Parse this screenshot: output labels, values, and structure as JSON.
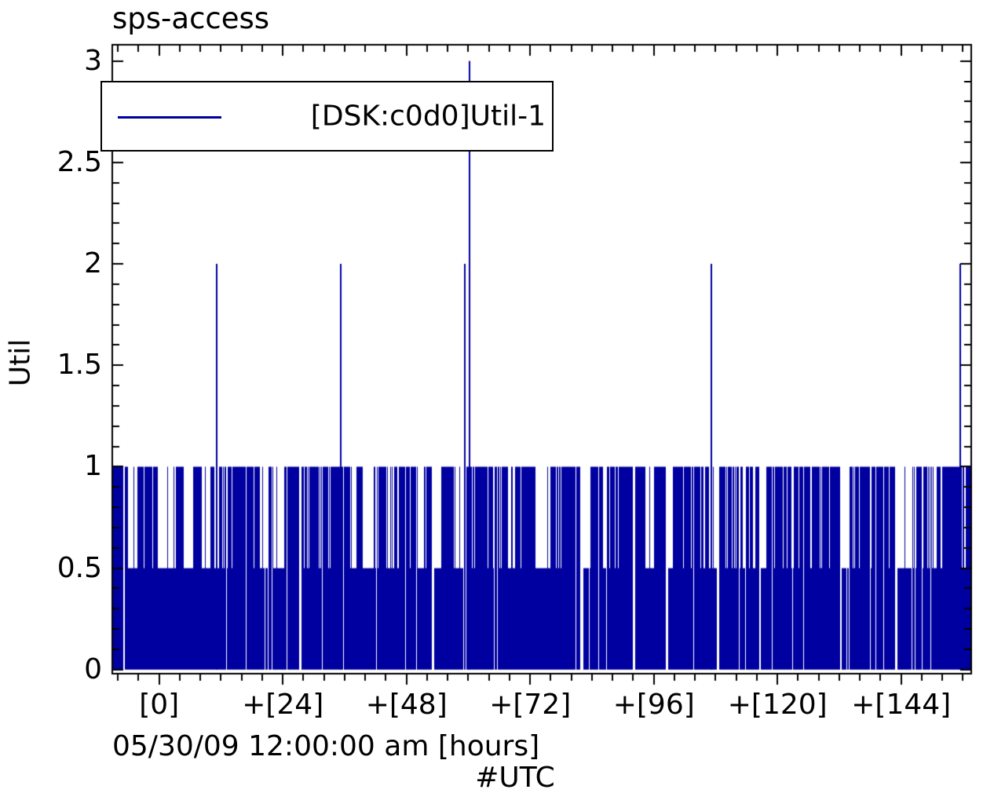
{
  "page": {
    "background": "#ffffff"
  },
  "chart_data": {
    "type": "bar",
    "subtype": "impulses",
    "title": "sps-access",
    "ylabel": "Util",
    "xlabel": "05/30/09 12:00:00 am [hours]",
    "xlabel2": "#UTC",
    "grid": false,
    "series_color": "#0000a0",
    "legend": {
      "position": "top-left",
      "entries": [
        {
          "label": "[DSK:c0d0]Util-1",
          "color": "#0000a0"
        }
      ]
    },
    "x_axis": {
      "unit": "hours since 05/30/09 12:00:00 am UTC",
      "min": -9.1,
      "max": 157.6,
      "major_ticks": [
        0,
        24,
        48,
        72,
        96,
        120,
        144
      ],
      "major_tick_labels": [
        "[0]",
        "+[24]",
        "+[48]",
        "+[72]",
        "+[96]",
        "+[120]",
        "+[144]"
      ],
      "minor_tick_step": 4
    },
    "y_axis": {
      "min": -0.02,
      "max": 3.08,
      "major_ticks": [
        0,
        0.5,
        1,
        1.5,
        2,
        2.5,
        3
      ],
      "major_tick_labels": [
        "0",
        "0.5",
        "1",
        "1.5",
        "2",
        "2.5",
        "3"
      ],
      "minor_tick_step": 0.1
    },
    "spikes": [
      {
        "hour": 11.1,
        "value": 2
      },
      {
        "hour": 35.2,
        "value": 2
      },
      {
        "hour": 59.3,
        "value": 2
      },
      {
        "hour": 60.3,
        "value": 3
      },
      {
        "hour": 107.1,
        "value": 2
      },
      {
        "hour": 155.4,
        "value": 2
      }
    ],
    "baseline_texture": {
      "note": "dense per-pixel-column impulses; values quantized to 1.0 and 0.5, white gaps = 0/no data",
      "values": [
        1,
        0.5,
        0
      ],
      "seed": 1337,
      "regions": [
        {
          "to_hour": 49,
          "p_full": 0.6,
          "p_half": 0.28
        },
        {
          "to_hour": 61,
          "p_full": 0.5,
          "p_half": 0.28
        },
        {
          "to_hour": 96,
          "p_full": 0.42,
          "p_half": 0.3
        },
        {
          "to_hour": 155,
          "p_full": 0.6,
          "p_half": 0.28
        },
        {
          "to_hour": 158,
          "p_full": 0.97,
          "p_half": 0.03
        }
      ]
    }
  }
}
